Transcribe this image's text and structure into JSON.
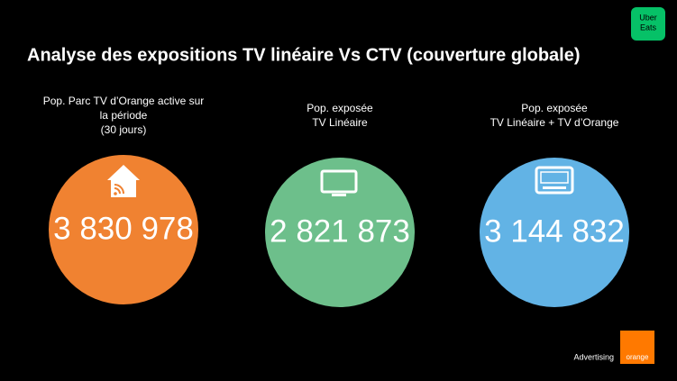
{
  "header": {
    "title": "Analyse des expositions TV linéaire Vs CTV (couverture globale)",
    "logo": [
      "Uber",
      "Eats"
    ]
  },
  "metrics": [
    {
      "label": [
        "Pop. Parc TV d’Orange active sur",
        "la période",
        "(30 jours)"
      ],
      "value": "3 830 978"
    },
    {
      "label": [
        "Pop. exposée",
        "TV Linéaire"
      ],
      "value": "2 821 873"
    },
    {
      "label": [
        "Pop. exposée",
        "TV Linéaire + TV d’Orange"
      ],
      "value": "3 144 832"
    }
  ],
  "footer": {
    "text": "Advertising",
    "brand": "orange"
  }
}
